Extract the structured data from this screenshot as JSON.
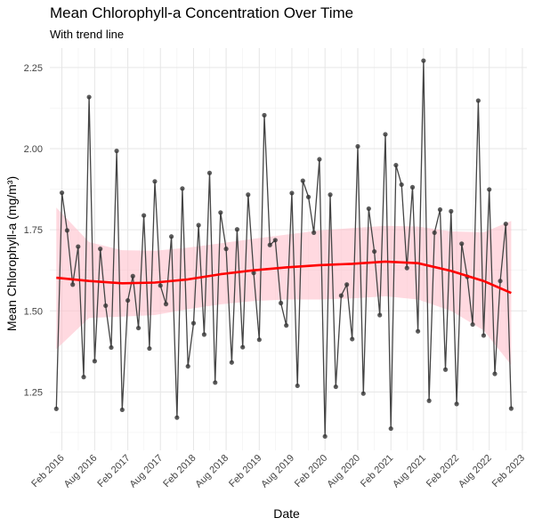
{
  "chart_data": {
    "type": "line",
    "title": "Mean Chlorophyll-a Concentration Over Time",
    "subtitle": "With trend line",
    "xlabel": "Date",
    "ylabel": "Mean Chlorophyll-a (mg/m³)",
    "ylim": [
      1.07,
      2.31
    ],
    "xlim": [
      "2015-11-26",
      "2023-02-26"
    ],
    "x_ticks": [
      {
        "date": "2016-02-01",
        "label": "Feb 2016"
      },
      {
        "date": "2016-08-01",
        "label": "Aug 2016"
      },
      {
        "date": "2017-02-01",
        "label": "Feb 2017"
      },
      {
        "date": "2017-08-01",
        "label": "Aug 2017"
      },
      {
        "date": "2018-02-01",
        "label": "Feb 2018"
      },
      {
        "date": "2018-08-01",
        "label": "Aug 2018"
      },
      {
        "date": "2019-02-01",
        "label": "Feb 2019"
      },
      {
        "date": "2019-08-01",
        "label": "Aug 2019"
      },
      {
        "date": "2020-02-01",
        "label": "Feb 2020"
      },
      {
        "date": "2020-08-01",
        "label": "Aug 2020"
      },
      {
        "date": "2021-02-01",
        "label": "Feb 2021"
      },
      {
        "date": "2021-08-01",
        "label": "Aug 2021"
      },
      {
        "date": "2022-02-01",
        "label": "Feb 2022"
      },
      {
        "date": "2022-08-01",
        "label": "Aug 2022"
      },
      {
        "date": "2023-02-01",
        "label": "Feb 2023"
      }
    ],
    "y_ticks": [
      1.25,
      1.5,
      1.75,
      2.0,
      2.25
    ],
    "y_tick_labels": [
      "1.25",
      "1.50",
      "1.75",
      "2.00",
      "2.25"
    ],
    "grid": true,
    "series": [
      {
        "kind": "observed",
        "color": "#444444",
        "points": [
          [
            "2016-01-01",
            1.198
          ],
          [
            "2016-02-01",
            1.864
          ],
          [
            "2016-03-01",
            1.748
          ],
          [
            "2016-04-01",
            1.581
          ],
          [
            "2016-05-01",
            1.698
          ],
          [
            "2016-06-01",
            1.296
          ],
          [
            "2016-07-01",
            2.159
          ],
          [
            "2016-08-01",
            1.345
          ],
          [
            "2016-09-01",
            1.691
          ],
          [
            "2016-10-01",
            1.516
          ],
          [
            "2016-11-01",
            1.387
          ],
          [
            "2016-12-01",
            1.993
          ],
          [
            "2017-01-01",
            1.195
          ],
          [
            "2017-02-01",
            1.532
          ],
          [
            "2017-03-01",
            1.607
          ],
          [
            "2017-04-01",
            1.447
          ],
          [
            "2017-05-01",
            1.794
          ],
          [
            "2017-06-01",
            1.384
          ],
          [
            "2017-07-01",
            1.899
          ],
          [
            "2017-08-01",
            1.578
          ],
          [
            "2017-09-01",
            1.521
          ],
          [
            "2017-10-01",
            1.729
          ],
          [
            "2017-11-01",
            1.171
          ],
          [
            "2017-12-01",
            1.877
          ],
          [
            "2018-01-01",
            1.329
          ],
          [
            "2018-02-01",
            1.462
          ],
          [
            "2018-03-01",
            1.764
          ],
          [
            "2018-04-01",
            1.427
          ],
          [
            "2018-05-01",
            1.925
          ],
          [
            "2018-06-01",
            1.279
          ],
          [
            "2018-07-01",
            1.803
          ],
          [
            "2018-08-01",
            1.691
          ],
          [
            "2018-09-01",
            1.341
          ],
          [
            "2018-10-01",
            1.751
          ],
          [
            "2018-11-01",
            1.388
          ],
          [
            "2018-12-01",
            1.858
          ],
          [
            "2019-01-01",
            1.617
          ],
          [
            "2019-02-01",
            1.411
          ],
          [
            "2019-03-01",
            2.103
          ],
          [
            "2019-04-01",
            1.703
          ],
          [
            "2019-05-01",
            1.718
          ],
          [
            "2019-06-01",
            1.524
          ],
          [
            "2019-07-01",
            1.455
          ],
          [
            "2019-08-01",
            1.863
          ],
          [
            "2019-09-01",
            1.269
          ],
          [
            "2019-10-01",
            1.901
          ],
          [
            "2019-11-01",
            1.851
          ],
          [
            "2019-12-01",
            1.741
          ],
          [
            "2020-01-01",
            1.967
          ],
          [
            "2020-02-01",
            1.113
          ],
          [
            "2020-03-01",
            1.858
          ],
          [
            "2020-04-01",
            1.266
          ],
          [
            "2020-05-01",
            1.547
          ],
          [
            "2020-06-01",
            1.581
          ],
          [
            "2020-07-01",
            1.413
          ],
          [
            "2020-08-01",
            2.007
          ],
          [
            "2020-09-01",
            1.245
          ],
          [
            "2020-10-01",
            1.815
          ],
          [
            "2020-11-01",
            1.683
          ],
          [
            "2020-12-01",
            1.487
          ],
          [
            "2021-01-01",
            2.044
          ],
          [
            "2021-02-01",
            1.137
          ],
          [
            "2021-03-01",
            1.949
          ],
          [
            "2021-04-01",
            1.889
          ],
          [
            "2021-05-01",
            1.632
          ],
          [
            "2021-06-01",
            1.881
          ],
          [
            "2021-07-01",
            1.437
          ],
          [
            "2021-08-01",
            2.271
          ],
          [
            "2021-09-01",
            1.223
          ],
          [
            "2021-10-01",
            1.741
          ],
          [
            "2021-11-01",
            1.812
          ],
          [
            "2021-12-01",
            1.319
          ],
          [
            "2022-01-01",
            1.807
          ],
          [
            "2022-02-01",
            1.213
          ],
          [
            "2022-03-01",
            1.707
          ],
          [
            "2022-04-01",
            1.605
          ],
          [
            "2022-05-01",
            1.458
          ],
          [
            "2022-06-01",
            2.148
          ],
          [
            "2022-07-01",
            1.424
          ],
          [
            "2022-08-01",
            1.874
          ],
          [
            "2022-09-01",
            1.306
          ],
          [
            "2022-10-01",
            1.592
          ],
          [
            "2022-11-01",
            1.768
          ],
          [
            "2022-12-01",
            1.199
          ]
        ]
      },
      {
        "kind": "trend",
        "color": "#ff0000",
        "band_color": "#ffc0cb",
        "points": [
          [
            "2016-01-01",
            1.602,
            1.382,
            1.818
          ],
          [
            "2016-07-01",
            1.592,
            1.478,
            1.712
          ],
          [
            "2017-01-01",
            1.585,
            1.482,
            1.687
          ],
          [
            "2017-07-01",
            1.587,
            1.487,
            1.685
          ],
          [
            "2018-01-01",
            1.597,
            1.505,
            1.695
          ],
          [
            "2018-07-01",
            1.613,
            1.52,
            1.708
          ],
          [
            "2019-01-01",
            1.625,
            1.53,
            1.722
          ],
          [
            "2019-07-01",
            1.634,
            1.535,
            1.735
          ],
          [
            "2020-01-01",
            1.641,
            1.535,
            1.748
          ],
          [
            "2020-07-01",
            1.645,
            1.538,
            1.755
          ],
          [
            "2021-01-01",
            1.652,
            1.545,
            1.762
          ],
          [
            "2021-07-01",
            1.647,
            1.535,
            1.76
          ],
          [
            "2022-01-01",
            1.623,
            1.5,
            1.745
          ],
          [
            "2022-07-01",
            1.592,
            1.44,
            1.742
          ],
          [
            "2022-12-01",
            1.555,
            1.333,
            1.777
          ]
        ]
      }
    ]
  }
}
